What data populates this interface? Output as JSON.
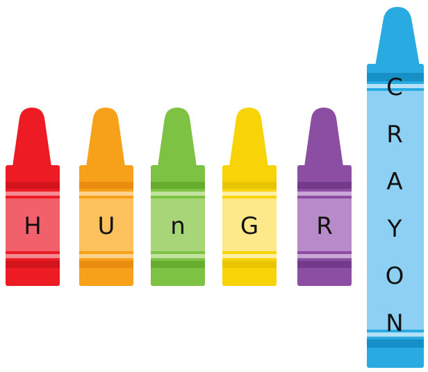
{
  "crayons": [
    {
      "letter": "H",
      "color": "#ed1c24",
      "light": "#f2606b",
      "dark": "#d3141c",
      "band": "#f48a90"
    },
    {
      "letter": "U",
      "color": "#f7a11a",
      "light": "#fcc05c",
      "dark": "#e98c0f",
      "band": "#fdd38c"
    },
    {
      "letter": "n",
      "color": "#7dc242",
      "light": "#a7d578",
      "dark": "#66ac2e",
      "band": "#c2e39e"
    },
    {
      "letter": "G",
      "color": "#f7d308",
      "light": "#fde989",
      "dark": "#e9c400",
      "band": "#fff0a6"
    },
    {
      "letter": "R",
      "color": "#8b4ea3",
      "light": "#b88ac9",
      "dark": "#733a8c",
      "band": "#c9a6d6"
    }
  ],
  "big_crayon": {
    "letters": [
      "C",
      "R",
      "A",
      "Y",
      "O",
      "N"
    ],
    "color": "#29aae1",
    "light": "#8dd0f3",
    "dark": "#1790c8",
    "band": "#b3e2f8"
  }
}
